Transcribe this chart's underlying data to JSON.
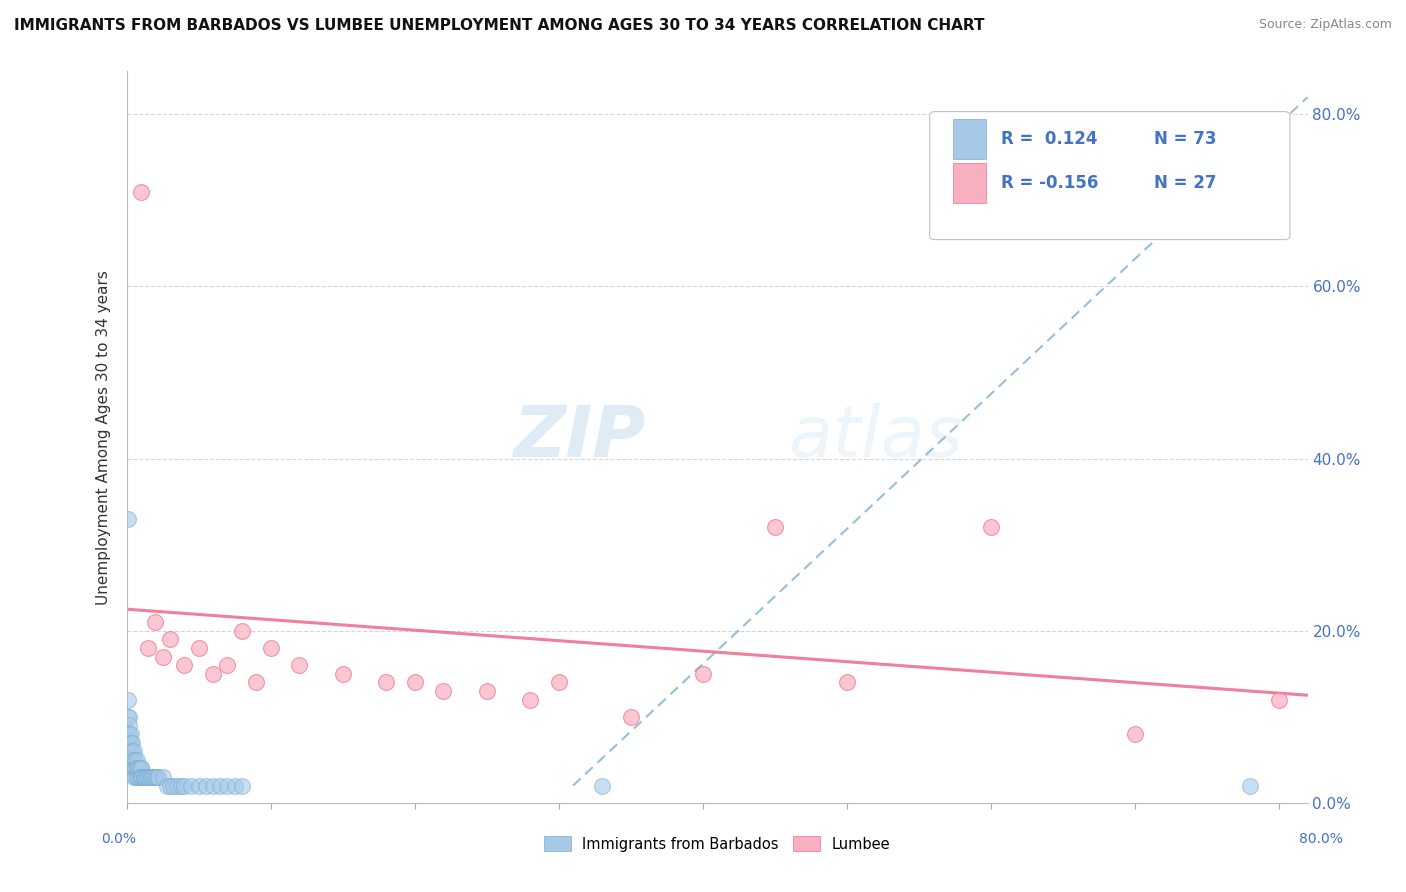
{
  "title": "IMMIGRANTS FROM BARBADOS VS LUMBEE UNEMPLOYMENT AMONG AGES 30 TO 34 YEARS CORRELATION CHART",
  "source": "Source: ZipAtlas.com",
  "ylabel": "Unemployment Among Ages 30 to 34 years",
  "legend_line1": "R =  0.124   N = 73",
  "legend_line2": "R = -0.156   N = 27",
  "legend_label1": "Immigrants from Barbados",
  "legend_label2": "Lumbee",
  "barbados_color": "#a8c8e8",
  "lumbee_color": "#f8b0c0",
  "trendline_barbados_color": "#7bafd4",
  "trendline_lumbee_color": "#f07090",
  "legend_text_color": "#4472c4",
  "watermark_color": "#d8eaf8",
  "background_color": "#ffffff",
  "xlim": [
    0.0,
    0.82
  ],
  "ylim": [
    0.0,
    0.85
  ],
  "ytick_vals": [
    0.0,
    0.2,
    0.4,
    0.6,
    0.8
  ],
  "ytick_labels": [
    "0.0%",
    "20.0%",
    "40.0%",
    "60.0%",
    "80.0%"
  ],
  "barbados_x": [
    0.001,
    0.001,
    0.001,
    0.001,
    0.001,
    0.001,
    0.001,
    0.002,
    0.002,
    0.002,
    0.002,
    0.002,
    0.002,
    0.003,
    0.003,
    0.003,
    0.003,
    0.003,
    0.004,
    0.004,
    0.004,
    0.004,
    0.005,
    0.005,
    0.005,
    0.005,
    0.006,
    0.006,
    0.006,
    0.007,
    0.007,
    0.007,
    0.008,
    0.008,
    0.008,
    0.009,
    0.009,
    0.01,
    0.01,
    0.01,
    0.01,
    0.011,
    0.012,
    0.012,
    0.013,
    0.013,
    0.014,
    0.015,
    0.015,
    0.016,
    0.017,
    0.018,
    0.019,
    0.02,
    0.021,
    0.022,
    0.025,
    0.028,
    0.03,
    0.032,
    0.035,
    0.038,
    0.04,
    0.045,
    0.05,
    0.055,
    0.06,
    0.065,
    0.07,
    0.075,
    0.08,
    0.33,
    0.78
  ],
  "barbados_y": [
    0.33,
    0.12,
    0.1,
    0.08,
    0.07,
    0.06,
    0.05,
    0.1,
    0.09,
    0.08,
    0.07,
    0.06,
    0.05,
    0.08,
    0.07,
    0.06,
    0.05,
    0.04,
    0.07,
    0.06,
    0.05,
    0.04,
    0.06,
    0.05,
    0.04,
    0.03,
    0.05,
    0.04,
    0.03,
    0.05,
    0.04,
    0.03,
    0.04,
    0.04,
    0.03,
    0.04,
    0.03,
    0.04,
    0.04,
    0.03,
    0.03,
    0.03,
    0.03,
    0.03,
    0.03,
    0.03,
    0.03,
    0.03,
    0.03,
    0.03,
    0.03,
    0.03,
    0.03,
    0.03,
    0.03,
    0.03,
    0.03,
    0.02,
    0.02,
    0.02,
    0.02,
    0.02,
    0.02,
    0.02,
    0.02,
    0.02,
    0.02,
    0.02,
    0.02,
    0.02,
    0.02,
    0.02,
    0.02
  ],
  "lumbee_x": [
    0.01,
    0.015,
    0.02,
    0.025,
    0.03,
    0.04,
    0.05,
    0.06,
    0.07,
    0.08,
    0.09,
    0.1,
    0.12,
    0.15,
    0.18,
    0.2,
    0.22,
    0.25,
    0.28,
    0.3,
    0.35,
    0.4,
    0.45,
    0.5,
    0.6,
    0.7,
    0.8
  ],
  "lumbee_y": [
    0.71,
    0.18,
    0.21,
    0.17,
    0.19,
    0.16,
    0.18,
    0.15,
    0.16,
    0.2,
    0.14,
    0.18,
    0.16,
    0.15,
    0.14,
    0.14,
    0.13,
    0.13,
    0.12,
    0.14,
    0.1,
    0.15,
    0.32,
    0.14,
    0.32,
    0.08,
    0.12
  ],
  "trendline_barbados_x0": 0.31,
  "trendline_barbados_y0": 0.02,
  "trendline_barbados_x1": 0.82,
  "trendline_barbados_y1": 0.82,
  "trendline_lumbee_x0": 0.0,
  "trendline_lumbee_y0": 0.225,
  "trendline_lumbee_x1": 0.82,
  "trendline_lumbee_y1": 0.125
}
